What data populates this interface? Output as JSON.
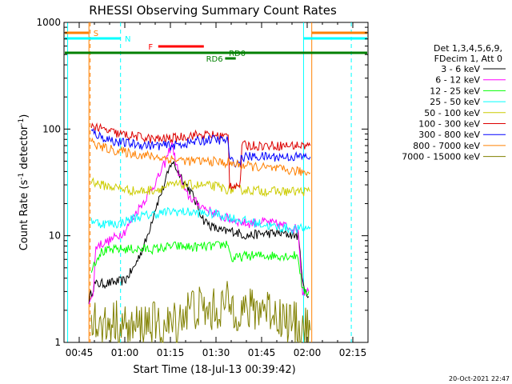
{
  "chart_data": {
    "type": "line",
    "title": "RHESSI Observing Summary Count Rates",
    "xlabel": "Start Time (18-Jul-13 00:39:42)",
    "ylabel_main": "Count Rate (s",
    "ylabel_sup": "-1",
    "ylabel_rest": " detector",
    "ylabel_sup2": "-1",
    "ylabel_close": ")",
    "y_scale": "log",
    "ylim": [
      1,
      1000
    ],
    "xlim_minutes": [
      40,
      140
    ],
    "x_ticks": [
      {
        "m": 45,
        "label": "00:45"
      },
      {
        "m": 60,
        "label": "01:00"
      },
      {
        "m": 75,
        "label": "01:15"
      },
      {
        "m": 90,
        "label": "01:30"
      },
      {
        "m": 105,
        "label": "01:45"
      },
      {
        "m": 120,
        "label": "02:00"
      },
      {
        "m": 135,
        "label": "02:15"
      }
    ],
    "y_ticks": [
      {
        "v": 1,
        "label": "1"
      },
      {
        "v": 10,
        "label": "10"
      },
      {
        "v": 100,
        "label": "100"
      },
      {
        "v": 1000,
        "label": "1000"
      }
    ],
    "legend_header": [
      "Det 1,3,4,5,6,9,",
      "FDecim 1, Att 0"
    ],
    "legend_position": "right",
    "timestamp": "20-Oct-2021 22:47",
    "series": [
      {
        "name": "3 - 6 keV",
        "color": "#000000",
        "points": [
          [
            48.2,
            2.5
          ],
          [
            50,
            3.5
          ],
          [
            55,
            3.6
          ],
          [
            60,
            3.8
          ],
          [
            63,
            5
          ],
          [
            67,
            9
          ],
          [
            70,
            18
          ],
          [
            73,
            30
          ],
          [
            75.5,
            50
          ],
          [
            78,
            38
          ],
          [
            82,
            25
          ],
          [
            86,
            14
          ],
          [
            89,
            12
          ],
          [
            92,
            11
          ],
          [
            96,
            11
          ],
          [
            100,
            10
          ],
          [
            106,
            10.5
          ],
          [
            112,
            10.5
          ],
          [
            117,
            10
          ],
          [
            119,
            3
          ],
          [
            120.5,
            2.7
          ]
        ]
      },
      {
        "name": "6 - 12 keV",
        "color": "#ff00ff",
        "points": [
          [
            48.2,
            2.5
          ],
          [
            49.5,
            2.6
          ],
          [
            50.5,
            8
          ],
          [
            55,
            9
          ],
          [
            60,
            11
          ],
          [
            64,
            17
          ],
          [
            68,
            25
          ],
          [
            71,
            35
          ],
          [
            73.5,
            50
          ],
          [
            75.5,
            75
          ],
          [
            77,
            45
          ],
          [
            80,
            25
          ],
          [
            84,
            20
          ],
          [
            88,
            17
          ],
          [
            92,
            15
          ],
          [
            96,
            14
          ],
          [
            100,
            13
          ],
          [
            106,
            13.5
          ],
          [
            112,
            12.5
          ],
          [
            117,
            11.5
          ],
          [
            118.5,
            3
          ],
          [
            120.5,
            3
          ]
        ]
      },
      {
        "name": "12 - 25 keV",
        "color": "#00ff00",
        "points": [
          [
            49,
            5
          ],
          [
            52,
            7
          ],
          [
            58,
            7.5
          ],
          [
            64,
            7.5
          ],
          [
            70,
            7.5
          ],
          [
            76,
            8
          ],
          [
            82,
            7.8
          ],
          [
            90,
            8
          ],
          [
            94,
            8.5
          ],
          [
            95,
            6
          ],
          [
            100,
            6.5
          ],
          [
            106,
            6.5
          ],
          [
            112,
            6.5
          ],
          [
            117,
            6.5
          ],
          [
            118.5,
            3
          ],
          [
            120.5,
            3
          ]
        ]
      },
      {
        "name": "25 - 50 keV",
        "color": "#00ffff",
        "points": [
          [
            49,
            14
          ],
          [
            52,
            13
          ],
          [
            58,
            13
          ],
          [
            64,
            15
          ],
          [
            70,
            16
          ],
          [
            76,
            17
          ],
          [
            82,
            16.5
          ],
          [
            90,
            16
          ],
          [
            94,
            15
          ],
          [
            98,
            14
          ],
          [
            104,
            13
          ],
          [
            110,
            12
          ],
          [
            117,
            11.5
          ],
          [
            121,
            12
          ]
        ]
      },
      {
        "name": "50 - 100 keV",
        "color": "#cccc00",
        "points": [
          [
            49,
            33
          ],
          [
            52,
            30
          ],
          [
            58,
            28
          ],
          [
            64,
            26
          ],
          [
            70,
            27
          ],
          [
            76,
            30
          ],
          [
            82,
            30
          ],
          [
            90,
            29
          ],
          [
            94,
            27
          ],
          [
            98,
            27
          ],
          [
            104,
            26.5
          ],
          [
            110,
            26
          ],
          [
            117,
            26
          ],
          [
            121,
            26
          ]
        ]
      },
      {
        "name": "100 - 300 keV",
        "color": "#dd0000",
        "points": [
          [
            49,
            110
          ],
          [
            52,
            100
          ],
          [
            58,
            90
          ],
          [
            64,
            85
          ],
          [
            70,
            80
          ],
          [
            76,
            82
          ],
          [
            82,
            88
          ],
          [
            88,
            88
          ],
          [
            94,
            85
          ],
          [
            94.5,
            30
          ],
          [
            98,
            30
          ],
          [
            98.5,
            70
          ],
          [
            104,
            70
          ],
          [
            110,
            70
          ],
          [
            117,
            70
          ],
          [
            121,
            70
          ]
        ]
      },
      {
        "name": "300 - 800 keV",
        "color": "#0000ff",
        "points": [
          [
            49,
            95
          ],
          [
            52,
            85
          ],
          [
            58,
            75
          ],
          [
            64,
            72
          ],
          [
            70,
            70
          ],
          [
            76,
            70
          ],
          [
            82,
            75
          ],
          [
            88,
            80
          ],
          [
            94,
            78
          ],
          [
            94.5,
            50
          ],
          [
            98,
            48
          ],
          [
            98.5,
            55
          ],
          [
            104,
            55
          ],
          [
            110,
            55
          ],
          [
            117,
            55
          ],
          [
            121,
            55
          ]
        ]
      },
      {
        "name": "800 - 7000 keV",
        "color": "#ff8000",
        "points": [
          [
            49,
            75
          ],
          [
            52,
            68
          ],
          [
            58,
            62
          ],
          [
            64,
            58
          ],
          [
            70,
            55
          ],
          [
            76,
            52
          ],
          [
            82,
            50
          ],
          [
            88,
            50
          ],
          [
            94,
            48
          ],
          [
            98,
            46
          ],
          [
            104,
            44
          ],
          [
            110,
            42
          ],
          [
            117,
            40
          ],
          [
            121,
            39
          ]
        ]
      },
      {
        "name": "7000 - 15000 keV",
        "color": "#808000",
        "points": [
          [
            49,
            2
          ],
          [
            52,
            1.3
          ],
          [
            56,
            1.6
          ],
          [
            62,
            1.3
          ],
          [
            68,
            1.6
          ],
          [
            72,
            1.3
          ],
          [
            76,
            1.5
          ],
          [
            82,
            2.2
          ],
          [
            88,
            1.9
          ],
          [
            94,
            2.3
          ],
          [
            100,
            1.9
          ],
          [
            106,
            2.2
          ],
          [
            112,
            1.7
          ],
          [
            117,
            1.4
          ],
          [
            121,
            1.3
          ]
        ]
      }
    ],
    "vertical_markers": [
      {
        "m": 48.2,
        "color": "#ff8000",
        "style": "solid"
      },
      {
        "m": 41.2,
        "color": "#00ffff",
        "style": "solid"
      },
      {
        "m": 48.6,
        "color": "#ff8000",
        "style": "dashed"
      },
      {
        "m": 58.6,
        "color": "#00ffff",
        "style": "dashed"
      },
      {
        "m": 118.8,
        "color": "#00ffff",
        "style": "solid"
      },
      {
        "m": 121.5,
        "color": "#ff8000",
        "style": "solid"
      },
      {
        "m": 134.5,
        "color": "#00ffff",
        "style": "dashed"
      }
    ],
    "flag_bars": [
      {
        "label": "S",
        "color": "#ff8000",
        "y": 41,
        "x1": 40,
        "x2": 48.2,
        "label_m": 50.5
      },
      {
        "label": "S",
        "color": "#ff8000",
        "y": 41,
        "x1": 121.5,
        "x2": 140,
        "label_m": null
      },
      {
        "label": "N",
        "color": "#00ffff",
        "y": 48,
        "x1": 40,
        "x2": 58.6,
        "label_m": 61
      },
      {
        "label": "N",
        "color": "#00ffff",
        "y": 48,
        "x1": 118.8,
        "x2": 140,
        "label_m": null
      },
      {
        "label": "F",
        "color": "#ff0000",
        "y": 58,
        "x1": 71,
        "x2": 86,
        "label_m": 68.5
      },
      {
        "label": "RD6",
        "color": "#008000",
        "y": 73,
        "x1": 93,
        "x2": 96.5,
        "label_m": 89.5
      },
      {
        "label": "RD0",
        "color": "#008000",
        "y": 66,
        "x1": 40,
        "x2": 140,
        "label_m": 97
      }
    ]
  }
}
